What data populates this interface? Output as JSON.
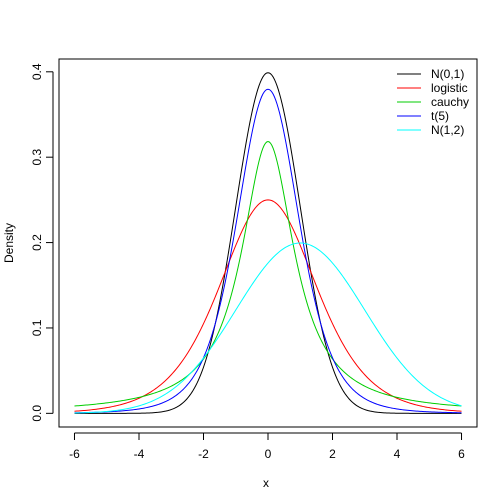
{
  "chart_data": {
    "type": "line",
    "title": "",
    "xlabel": "x",
    "ylabel": "Density",
    "xlim": [
      -6.48,
      6.48
    ],
    "ylim": [
      -0.016,
      0.415
    ],
    "x_ticks": [
      -6,
      -4,
      -2,
      0,
      2,
      4,
      6
    ],
    "y_ticks": [
      0.0,
      0.1,
      0.2,
      0.3,
      0.4
    ],
    "x_tick_labels": [
      "-6",
      "-4",
      "-2",
      "0",
      "2",
      "4",
      "6"
    ],
    "y_tick_labels": [
      "0.0",
      "0.1",
      "0.2",
      "0.3",
      "0.4"
    ],
    "grid": false,
    "legend_position": "top-right",
    "x_range": [
      -6,
      6
    ],
    "series": [
      {
        "name": "N(0,1)",
        "color": "#000000",
        "distribution": "normal",
        "mean": 0,
        "sd": 1
      },
      {
        "name": "logistic",
        "color": "#FF0000",
        "distribution": "logistic",
        "location": 0,
        "scale": 1
      },
      {
        "name": "cauchy",
        "color": "#00CD00",
        "distribution": "cauchy",
        "location": 0,
        "scale": 1
      },
      {
        "name": "t(5)",
        "color": "#0000FF",
        "distribution": "t",
        "df": 5
      },
      {
        "name": "N(1,2)",
        "color": "#00FFFF",
        "distribution": "normal",
        "mean": 1,
        "sd": 2
      }
    ]
  }
}
